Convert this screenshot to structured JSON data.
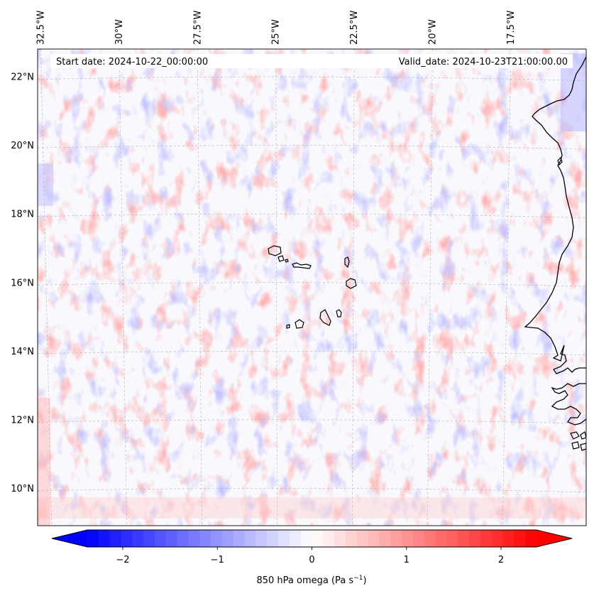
{
  "map": {
    "lon_labels": [
      "32.5°W",
      "30°W",
      "27.5°W",
      "25°W",
      "22.5°W",
      "20°W",
      "17.5°W"
    ],
    "lon_values": [
      -32.5,
      -30,
      -27.5,
      -25,
      -22.5,
      -20,
      -17.5
    ],
    "lat_labels": [
      "22°N",
      "20°N",
      "18°N",
      "16°N",
      "14°N",
      "12°N",
      "10°N"
    ],
    "lat_values": [
      22,
      20,
      18,
      16,
      14,
      12,
      10
    ],
    "extent": {
      "lon_min": -32.6,
      "lon_max": -15.1,
      "lat_min": 8.9,
      "lat_max": 22.8
    },
    "start_date": "Start date: 2024-10-22_00:00:00",
    "valid_date": "Valid_date: 2024-10-23T21:00:00.00",
    "field": "850 hPa omega",
    "colors": {
      "negative": "#0000ff",
      "zero": "#ffffff",
      "positive": "#ff0000",
      "coastline": "#000000",
      "grid": "#b0b0b0"
    }
  },
  "colorbar": {
    "ticks": [
      "−2",
      "−1",
      "0",
      "1",
      "2"
    ],
    "tick_values": [
      -2,
      -1,
      0,
      1,
      2
    ],
    "range": [
      -2.75,
      2.75
    ],
    "label_main": "850 hPa omega (Pa s",
    "label_exp": "−1",
    "label_close": ")"
  }
}
